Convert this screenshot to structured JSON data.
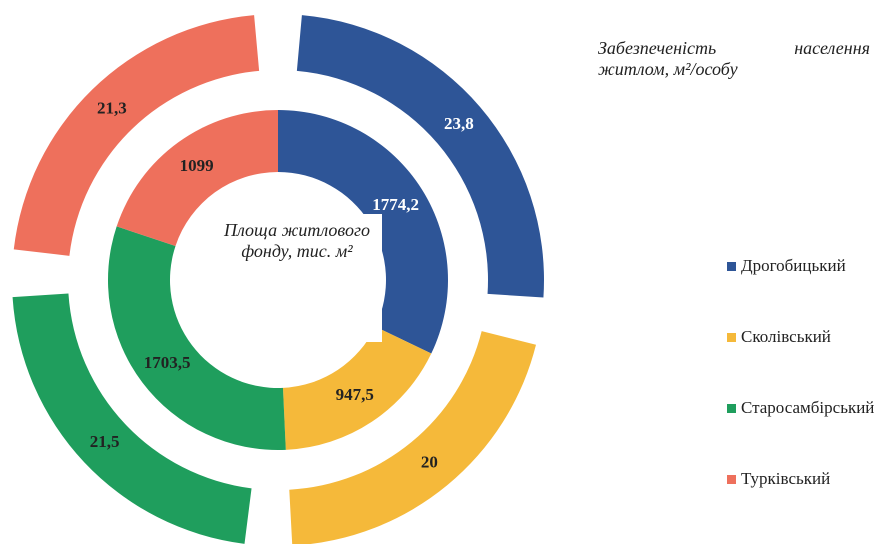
{
  "chart_data": {
    "type": "donut",
    "categories": [
      "Дрогобицький",
      "Сколівський",
      "Старосамбірський",
      "Турківський"
    ],
    "colors": [
      "#2e5597",
      "#f5b93a",
      "#1f9e5d",
      "#ee705c"
    ],
    "series": [
      {
        "name": "Площа житлового фонду, тис. м²",
        "values": [
          1774.2,
          947.5,
          1703.5,
          1099
        ],
        "value_labels": [
          "1774,2",
          "947,5",
          "1703,5",
          "1099"
        ]
      },
      {
        "name": "Забезпеченість населення житлом, м²/особу",
        "values": [
          23.8,
          20,
          21.5,
          21.3
        ],
        "value_labels": [
          "23,8",
          "20",
          "21,5",
          "21,3"
        ]
      }
    ]
  }
}
